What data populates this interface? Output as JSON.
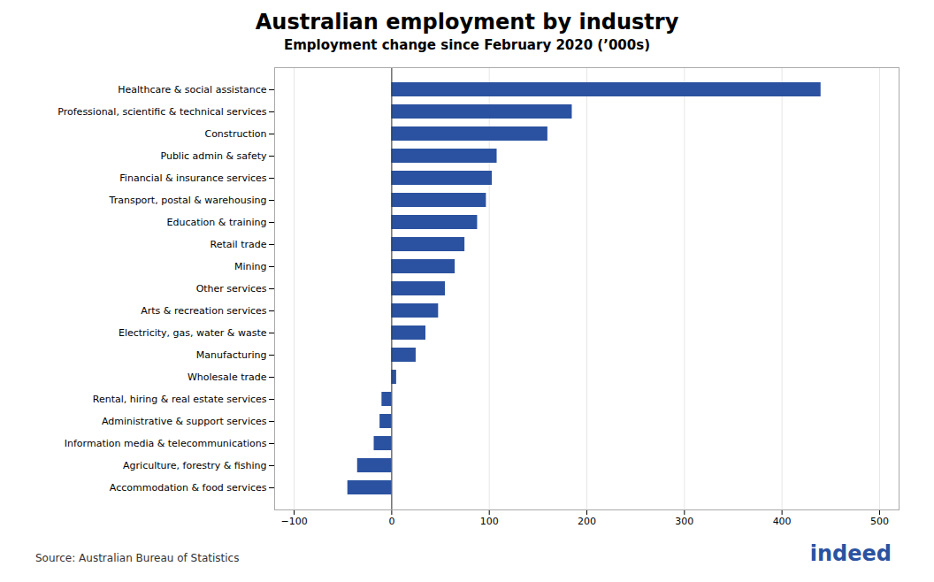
{
  "chart_data": {
    "type": "bar",
    "orientation": "horizontal",
    "title": "Australian employment by industry",
    "subtitle": "Employment change since February 2020 (’000s)",
    "categories": [
      "Healthcare & social assistance",
      "Professional, scientific & technical services",
      "Construction",
      "Public admin & safety",
      "Financial & insurance services",
      "Transport, postal & warehousing",
      "Education & training",
      "Retail trade",
      "Mining",
      "Other services",
      "Arts & recreation services",
      "Electricity, gas, water & waste",
      "Manufacturing",
      "Wholesale trade",
      "Rental, hiring & real estate services",
      "Administrative & support services",
      "Information media & telecommunications",
      "Agriculture, forestry & fishing",
      "Accommodation & food services"
    ],
    "values": [
      440,
      185,
      160,
      108,
      103,
      97,
      88,
      75,
      65,
      55,
      48,
      35,
      25,
      5,
      -10,
      -12,
      -18,
      -35,
      -45
    ],
    "color": "#2b52a0",
    "xlim": [
      -120,
      520
    ],
    "xticks": [
      -100,
      0,
      100,
      200,
      300,
      400,
      500
    ],
    "grid": true,
    "annotations": [
      "Source: Australian Bureau of Statistics",
      "indeed"
    ]
  }
}
